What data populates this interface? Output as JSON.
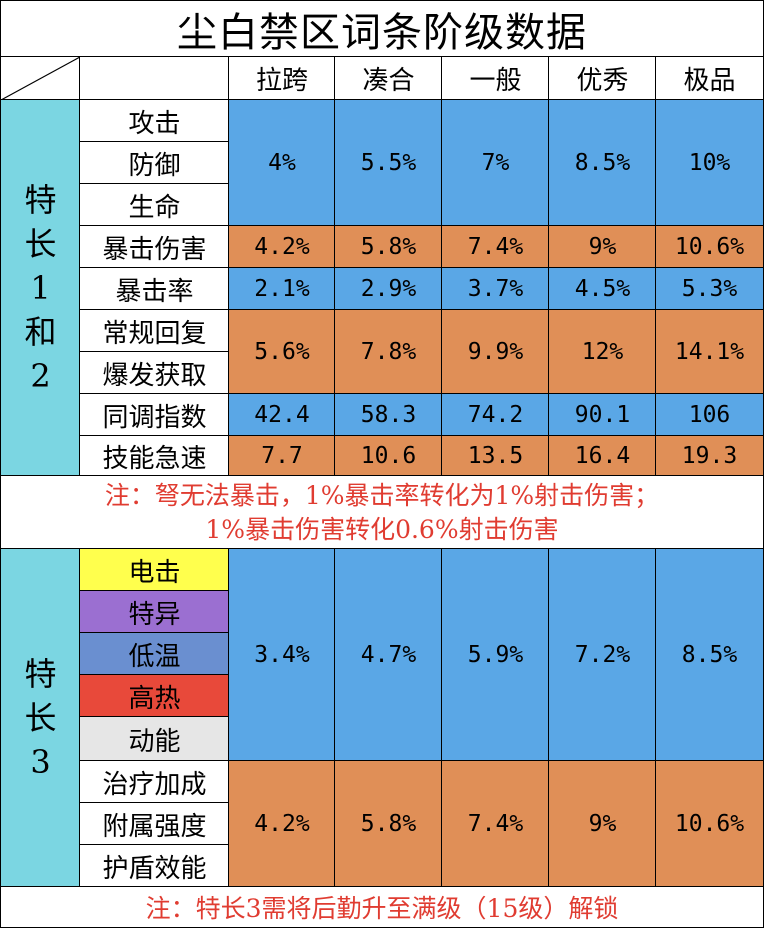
{
  "title": "尘白禁区词条阶级数据",
  "tiers": [
    "拉跨",
    "凑合",
    "一般",
    "优秀",
    "极品"
  ],
  "section1": {
    "label_chars": [
      "特",
      "长",
      "1",
      "和",
      "2"
    ],
    "rows": [
      {
        "attrs": [
          "攻击",
          "防御",
          "生命"
        ],
        "values": [
          "4%",
          "5.5%",
          "7%",
          "8.5%",
          "10%"
        ]
      },
      {
        "attrs": [
          "暴击伤害"
        ],
        "values": [
          "4.2%",
          "5.8%",
          "7.4%",
          "9%",
          "10.6%"
        ]
      },
      {
        "attrs": [
          "暴击率"
        ],
        "values": [
          "2.1%",
          "2.9%",
          "3.7%",
          "4.5%",
          "5.3%"
        ]
      },
      {
        "attrs": [
          "常规回复",
          "爆发获取"
        ],
        "values": [
          "5.6%",
          "7.8%",
          "9.9%",
          "12%",
          "14.1%"
        ]
      },
      {
        "attrs": [
          "同调指数"
        ],
        "values": [
          "42.4",
          "58.3",
          "74.2",
          "90.1",
          "106"
        ]
      },
      {
        "attrs": [
          "技能急速"
        ],
        "values": [
          "7.7",
          "10.6",
          "13.5",
          "16.4",
          "19.3"
        ]
      }
    ],
    "note_line1": "注：弩无法暴击，1%暴击率转化为1%射击伤害；",
    "note_line2": "1%暴击伤害转化0.6%射击伤害"
  },
  "section2": {
    "label_chars": [
      "特",
      "长",
      "3"
    ],
    "element_attrs": [
      "电击",
      "特异",
      "低温",
      "高热",
      "动能"
    ],
    "element_values": [
      "3.4%",
      "4.7%",
      "5.9%",
      "7.2%",
      "8.5%"
    ],
    "support_attrs": [
      "治疗加成",
      "附属强度",
      "护盾效能"
    ],
    "support_values": [
      "4.2%",
      "5.8%",
      "7.4%",
      "9%",
      "10.6%"
    ],
    "note": "注：特长3需将后勤升至满级（15级）解锁"
  },
  "colors": {
    "blue": "#5aa7e6",
    "orange": "#e08f57",
    "cyan": "#7bd6e2",
    "note_red": "#e03c31",
    "element_colors": [
      "#ffff4d",
      "#9b6fd1",
      "#6a8fd0",
      "#e8493a",
      "#e6e6e6"
    ],
    "element_text_colors": [
      "#000000",
      "#000000",
      "#000000",
      "#000000",
      "#000000"
    ]
  }
}
